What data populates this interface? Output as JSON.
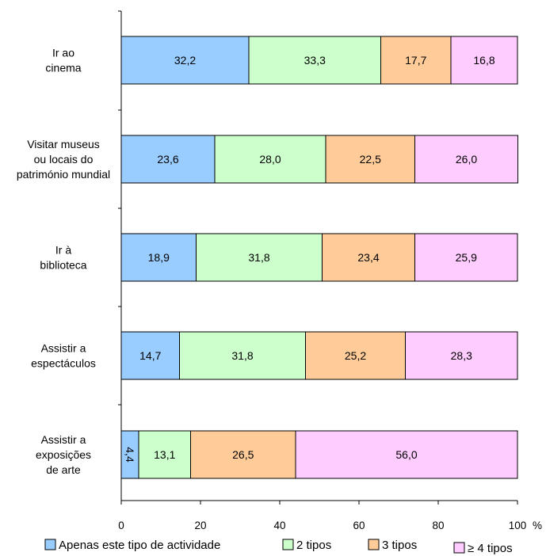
{
  "chart_data": {
    "type": "bar",
    "orientation": "horizontal",
    "stacked": true,
    "categories": [
      [
        "Ir ao",
        "cinema"
      ],
      [
        "Visitar museus",
        "ou locais do",
        "património mundial"
      ],
      [
        "Ir à",
        "biblioteca"
      ],
      [
        "Assistir a",
        "espectáculos"
      ],
      [
        "Assistir a",
        "exposições",
        "de arte"
      ]
    ],
    "series": [
      {
        "name": "Apenas este tipo de actividade",
        "color": "#99ccff",
        "values": [
          32.2,
          23.6,
          18.9,
          14.7,
          4.4
        ],
        "labels": [
          "32,2",
          "23,6",
          "18,9",
          "14,7",
          "4,4"
        ]
      },
      {
        "name": "2 tipos",
        "color": "#ccffcc",
        "values": [
          33.3,
          28.0,
          31.8,
          31.8,
          13.1
        ],
        "labels": [
          "33,3",
          "28,0",
          "31,8",
          "31,8",
          "13,1"
        ]
      },
      {
        "name": "3 tipos",
        "color": "#ffcc99",
        "values": [
          17.7,
          22.5,
          23.4,
          25.2,
          26.5
        ],
        "labels": [
          "17,7",
          "22,5",
          "23,4",
          "25,2",
          "26,5"
        ]
      },
      {
        "name": "≥ 4 tipos",
        "color": "#ffccff",
        "values": [
          16.8,
          26.0,
          25.9,
          28.3,
          56.0
        ],
        "labels": [
          "16,8",
          "26,0",
          "25,9",
          "28,3",
          "56,0"
        ]
      }
    ],
    "xlim": [
      0,
      100
    ],
    "xticks": [
      0,
      20,
      40,
      60,
      80,
      100
    ],
    "xunit": "%",
    "legend_position": "bottom",
    "grid": false
  }
}
